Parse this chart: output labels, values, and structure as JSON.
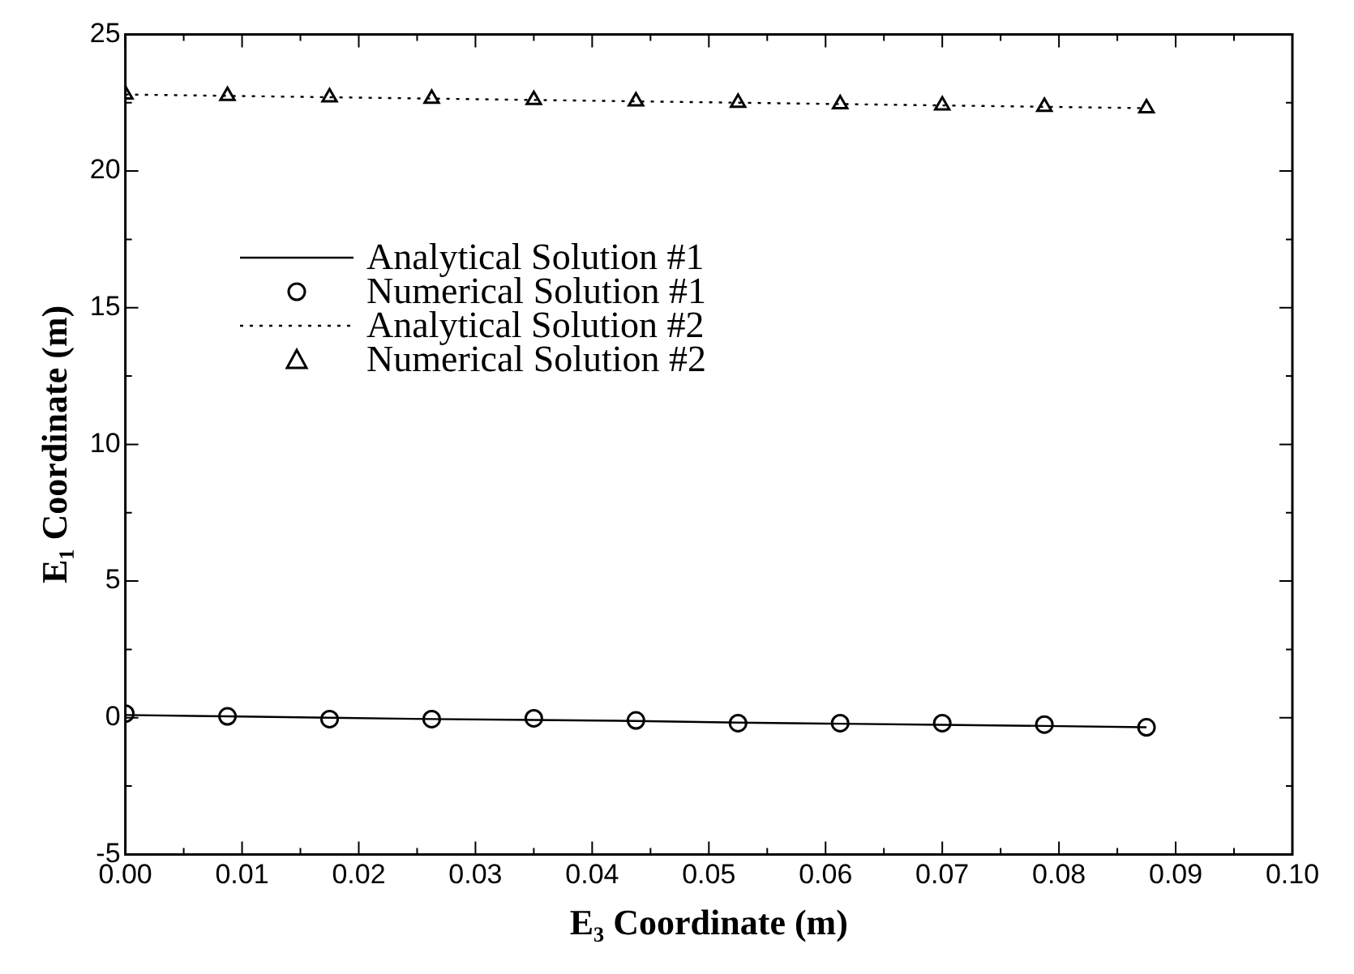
{
  "chart_data": {
    "type": "line",
    "xlabel": "E₃ Coordinate (m)",
    "ylabel": "E₁ Coordinate (m)",
    "x": [
      0,
      0.00875,
      0.0175,
      0.02625,
      0.035,
      0.04375,
      0.0525,
      0.06125,
      0.07,
      0.07875,
      0.0875
    ],
    "series": [
      {
        "name": "Analytical Solution #1",
        "type": "line",
        "color": "#000000",
        "marker": "none",
        "line_style": "solid",
        "values": [
          0.1,
          0.05,
          0,
          -0.05,
          -0.08,
          -0.12,
          -0.18,
          -0.22,
          -0.26,
          -0.3,
          -0.35
        ]
      },
      {
        "name": "Numerical Solution #1",
        "type": "scatter",
        "color": "#000000",
        "marker": "circle",
        "values": [
          0.15,
          0.05,
          -0.05,
          -0.05,
          -0.02,
          -0.1,
          -0.2,
          -0.2,
          -0.2,
          -0.25,
          -0.35
        ]
      },
      {
        "name": "Analytical Solution #2",
        "type": "line",
        "color": "#000000",
        "marker": "none",
        "line_style": "dotted",
        "values": [
          22.8,
          22.75,
          22.7,
          22.65,
          22.6,
          22.55,
          22.5,
          22.45,
          22.4,
          22.35,
          22.3
        ]
      },
      {
        "name": "Numerical Solution #2",
        "type": "scatter",
        "color": "#000000",
        "marker": "triangle",
        "values": [
          22.8,
          22.75,
          22.7,
          22.65,
          22.6,
          22.55,
          22.5,
          22.45,
          22.4,
          22.35,
          22.3
        ]
      }
    ],
    "xlim": [
      0,
      0.1
    ],
    "xticks": [
      {
        "value": 0,
        "label": "0.00"
      },
      {
        "value": 0.01,
        "label": "0.01"
      },
      {
        "value": 0.02,
        "label": "0.02"
      },
      {
        "value": 0.03,
        "label": "0.03"
      },
      {
        "value": 0.04,
        "label": "0.04"
      },
      {
        "value": 0.05,
        "label": "0.05"
      },
      {
        "value": 0.06,
        "label": "0.06"
      },
      {
        "value": 0.07,
        "label": "0.07"
      },
      {
        "value": 0.08,
        "label": "0.08"
      },
      {
        "value": 0.09,
        "label": "0.09"
      },
      {
        "value": 0.1,
        "label": "0.10"
      }
    ],
    "ylim": [
      -5,
      25
    ],
    "yticks": [
      -5,
      0,
      5,
      10,
      15,
      20,
      25
    ],
    "grid": false,
    "legend": "top left"
  }
}
